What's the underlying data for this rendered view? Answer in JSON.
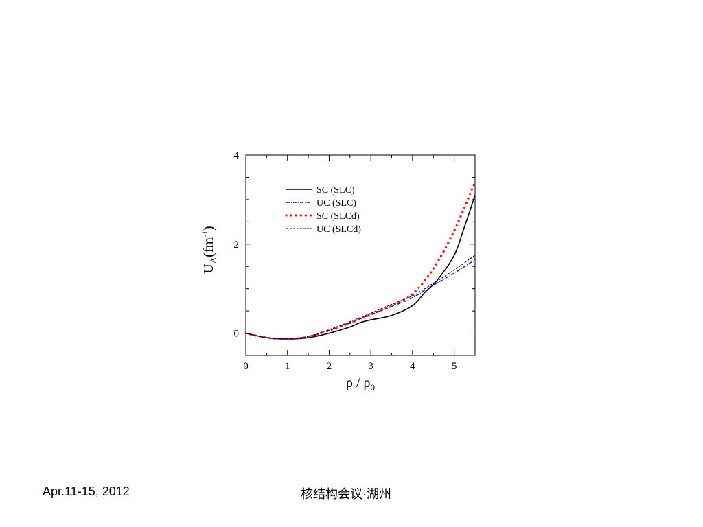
{
  "footer": {
    "date": "Apr.11-15, 2012",
    "venue": "核结构会议·湖州"
  },
  "chart_data": {
    "type": "line",
    "xlim": [
      0,
      5.5
    ],
    "ylim": [
      -0.5,
      4
    ],
    "xticks": [
      "0",
      "1",
      "2",
      "3",
      "4",
      "5"
    ],
    "yticks": [
      "0",
      "2",
      "4"
    ],
    "xlabel": {
      "main": "ρ / ρ",
      "sub": "0"
    },
    "ylabel": {
      "main": "U",
      "sub": "Λ",
      "unit": "(fm",
      "sup": "-1",
      "close": ")"
    },
    "legend_position": "upper-left inside plot",
    "grid": false,
    "series": [
      {
        "name": "SC (SLC)",
        "style": "solid",
        "color": "#000000",
        "x": [
          0,
          0.5,
          1.0,
          1.5,
          2.0,
          2.5,
          2.75,
          3.0,
          3.5,
          4.0,
          4.3,
          4.6,
          5.0,
          5.25,
          5.5
        ],
        "y": [
          0,
          -0.1,
          -0.13,
          -0.1,
          0.0,
          0.14,
          0.24,
          0.3,
          0.4,
          0.62,
          0.92,
          1.2,
          1.75,
          2.4,
          3.1
        ]
      },
      {
        "name": "UC (SLC)",
        "style": "dash-dot",
        "color": "#0000ff",
        "x": [
          0,
          0.5,
          1.0,
          1.5,
          2.0,
          2.5,
          3.0,
          3.5,
          4.0,
          4.5,
          5.0,
          5.5
        ],
        "y": [
          0,
          -0.1,
          -0.13,
          -0.08,
          0.06,
          0.23,
          0.42,
          0.6,
          0.8,
          1.08,
          1.35,
          1.65
        ]
      },
      {
        "name": "SC (SLCd)",
        "style": "dotted",
        "color": "#ff0000",
        "x": [
          0,
          0.5,
          1.0,
          1.5,
          2.0,
          2.5,
          3.0,
          3.5,
          4.0,
          4.5,
          5.0,
          5.5
        ],
        "y": [
          0,
          -0.1,
          -0.13,
          -0.08,
          0.06,
          0.23,
          0.42,
          0.62,
          0.88,
          1.45,
          2.3,
          3.4
        ]
      },
      {
        "name": "UC (SLCd)",
        "style": "dashed",
        "color": "#000000",
        "x": [
          0,
          0.5,
          1.0,
          1.5,
          2.0,
          2.5,
          3.0,
          3.5,
          4.0,
          4.5,
          5.0,
          5.5
        ],
        "y": [
          0,
          -0.1,
          -0.12,
          -0.07,
          0.08,
          0.26,
          0.45,
          0.65,
          0.84,
          1.12,
          1.42,
          1.75
        ]
      }
    ]
  }
}
